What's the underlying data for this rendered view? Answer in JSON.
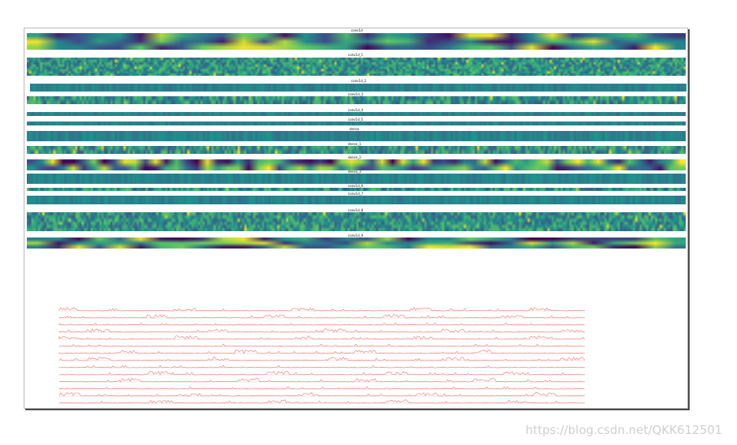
{
  "chart_data": [
    {
      "type": "heatmap",
      "panels": [
        {
          "title": "conv1d",
          "rows": 3,
          "cols": 32
        },
        {
          "title": "conv1d_1",
          "rows": 8,
          "cols": 300
        },
        {
          "title": "conv1d_2",
          "rows": 1,
          "cols": 300
        },
        {
          "title": "conv1d_3",
          "rows": 2,
          "cols": 300
        },
        {
          "title": "conv1d_4",
          "rows": 1,
          "cols": 300
        },
        {
          "title": "conv1d_5",
          "rows": 1,
          "cols": 300
        },
        {
          "title": "dense",
          "rows": 1,
          "cols": 300
        },
        {
          "title": "dense_1",
          "rows": 2,
          "cols": 300
        },
        {
          "title": "dense_2",
          "rows": 2,
          "cols": 64
        },
        {
          "title": "dense_3",
          "rows": 1,
          "cols": 300
        },
        {
          "title": "conv1d_6",
          "rows": 1,
          "cols": 300
        },
        {
          "title": "conv1d_7",
          "rows": 1,
          "cols": 300
        },
        {
          "title": "conv1d_8",
          "rows": 6,
          "cols": 300
        },
        {
          "title": "conv1d_9",
          "rows": 3,
          "cols": 32
        }
      ],
      "colormap": [
        "#440154",
        "#3b528b",
        "#21918c",
        "#5ec962",
        "#fde725"
      ]
    },
    {
      "type": "line",
      "series_count": 14,
      "line_color": "#e8746e"
    }
  ],
  "watermark": "https://blog.csdn.net/QKK612501"
}
